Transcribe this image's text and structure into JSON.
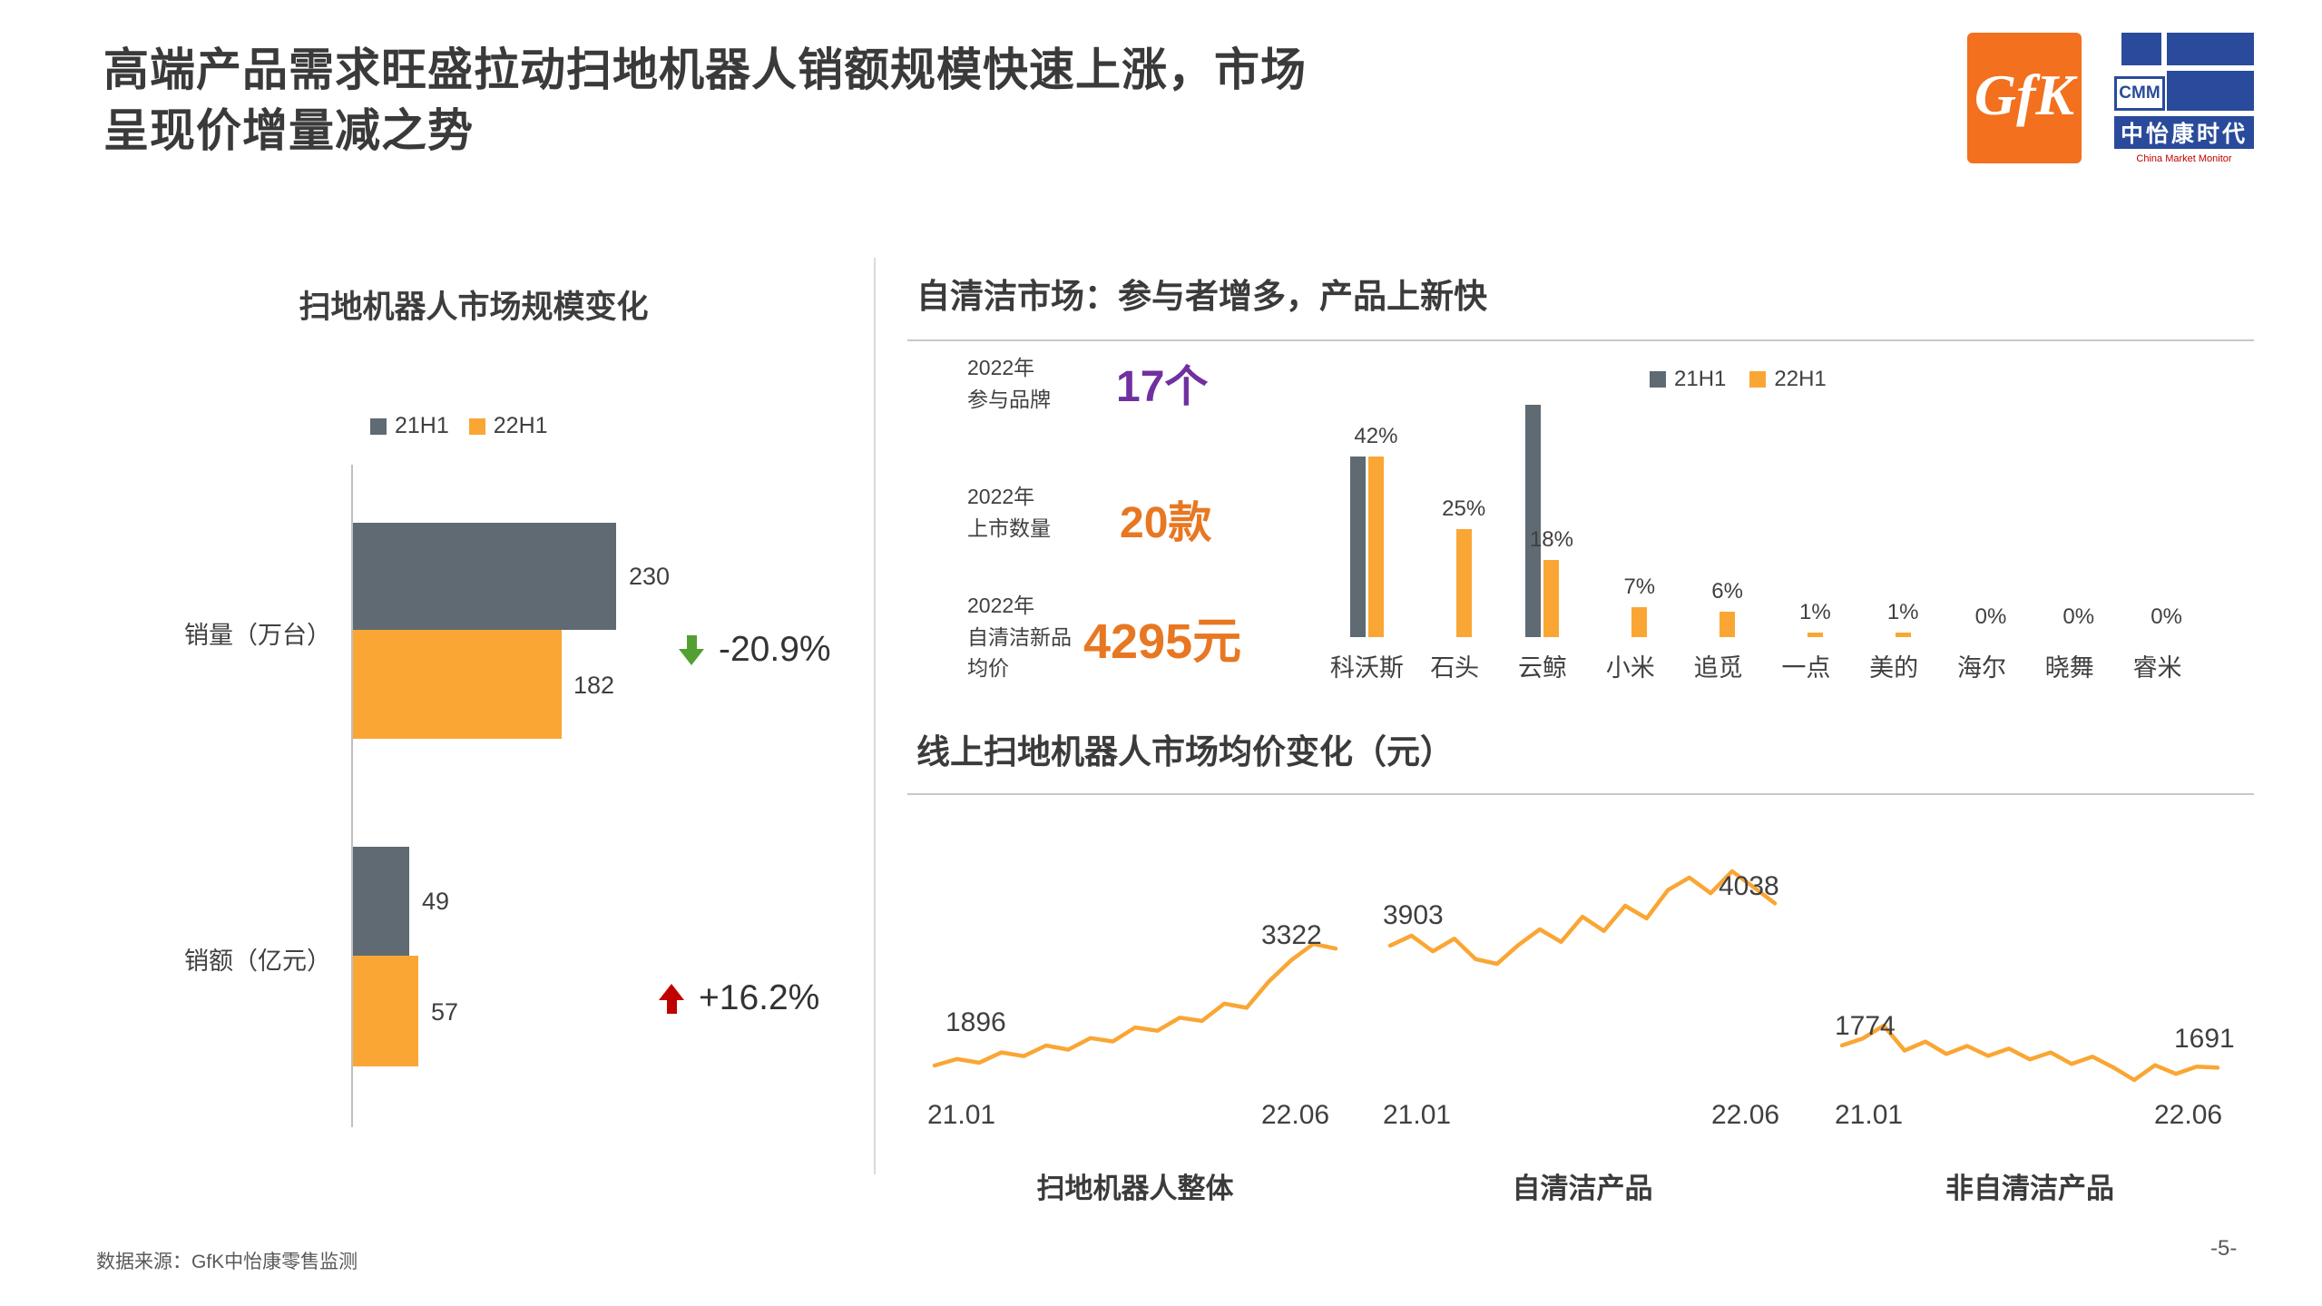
{
  "slide": {
    "title": "高端产品需求旺盛拉动扫地机器人销额规模快速上涨，市场\n呈现价增量减之势",
    "source": "数据来源：GfK中怡康零售监测",
    "page": "-5-"
  },
  "logos": {
    "gfk": "GfK",
    "cmm_abbr": "CMM",
    "cmm_name": "中怡康时代",
    "cmm_sub": "China Market Monitor"
  },
  "sections": {
    "self_clean_header": "自清洁市场：参与者增多，产品上新快",
    "price_header": "线上扫地机器人市场均价变化（元）"
  },
  "stats": [
    {
      "label": "2022年\n参与品牌",
      "value": "17个"
    },
    {
      "label": "2022年\n上市数量",
      "value": "20款"
    },
    {
      "label": "2022年\n自清洁新品\n均价",
      "value": "4295元"
    }
  ],
  "colors": {
    "gray": "#5F6A72",
    "orange": "#FAA634",
    "purple": "#7030A0",
    "stat_orange": "#E87722",
    "green": "#52A031",
    "red": "#C00000",
    "blue": "#2A4B9B",
    "gfk_orange": "#F3701E"
  },
  "chart_data": [
    {
      "id": "market-size",
      "type": "bar",
      "orientation": "horizontal",
      "title": "扫地机器人市场规模变化",
      "categories": [
        "销量（万台）",
        "销额（亿元）"
      ],
      "series": [
        {
          "name": "21H1",
          "values": [
            230,
            49
          ]
        },
        {
          "name": "22H1",
          "values": [
            182,
            57
          ]
        }
      ],
      "annotations": [
        {
          "category": "销量（万台）",
          "change": "-20.9%",
          "direction": "down"
        },
        {
          "category": "销额（亿元）",
          "change": "+16.2%",
          "direction": "up"
        }
      ],
      "xlim": [
        0,
        240
      ],
      "legend_position": "top-center"
    },
    {
      "id": "brand-share",
      "type": "bar",
      "orientation": "vertical",
      "categories": [
        "科沃斯",
        "石头",
        "云鲸",
        "小米",
        "追觅",
        "一点",
        "美的",
        "海尔",
        "晓舞",
        "睿米"
      ],
      "series": [
        {
          "name": "21H1",
          "values": [
            42,
            0,
            54,
            0,
            0,
            0,
            0,
            0,
            0,
            0
          ]
        },
        {
          "name": "22H1",
          "values": [
            42,
            25,
            18,
            7,
            6,
            1,
            1,
            0,
            0,
            0
          ]
        }
      ],
      "labels": [
        "42%",
        "25%",
        "18%",
        "7%",
        "6%",
        "1%",
        "1%",
        "0%",
        "0%",
        "0%"
      ],
      "ylim": [
        0,
        58
      ],
      "legend_position": "top-right"
    },
    {
      "id": "avg-price-overall",
      "type": "line",
      "title": "扫地机器人整体",
      "x_labels": [
        "21.01",
        "22.06"
      ],
      "start_label": "1896",
      "end_label": "3322",
      "values": [
        1896,
        1975,
        1930,
        2055,
        2010,
        2140,
        2090,
        2230,
        2190,
        2360,
        2320,
        2480,
        2440,
        2650,
        2600,
        2920,
        3180,
        3380,
        3322
      ]
    },
    {
      "id": "avg-price-selfclean",
      "type": "line",
      "title": "自清洁产品",
      "x_labels": [
        "21.01",
        "22.06"
      ],
      "start_label": "3903",
      "end_label": "4038",
      "values": [
        3903,
        3935,
        3885,
        3925,
        3860,
        3845,
        3905,
        3955,
        3915,
        3995,
        3950,
        4030,
        3990,
        4080,
        4120,
        4070,
        4140,
        4090,
        4038
      ]
    },
    {
      "id": "avg-price-nonselfclean",
      "type": "line",
      "title": "非自清洁产品",
      "x_labels": [
        "21.01",
        "22.06"
      ],
      "start_label": "1774",
      "end_label": "1691",
      "values": [
        1774,
        1800,
        1848,
        1755,
        1788,
        1742,
        1772,
        1735,
        1762,
        1722,
        1748,
        1705,
        1732,
        1692,
        1645,
        1700,
        1668,
        1695,
        1691
      ]
    }
  ]
}
